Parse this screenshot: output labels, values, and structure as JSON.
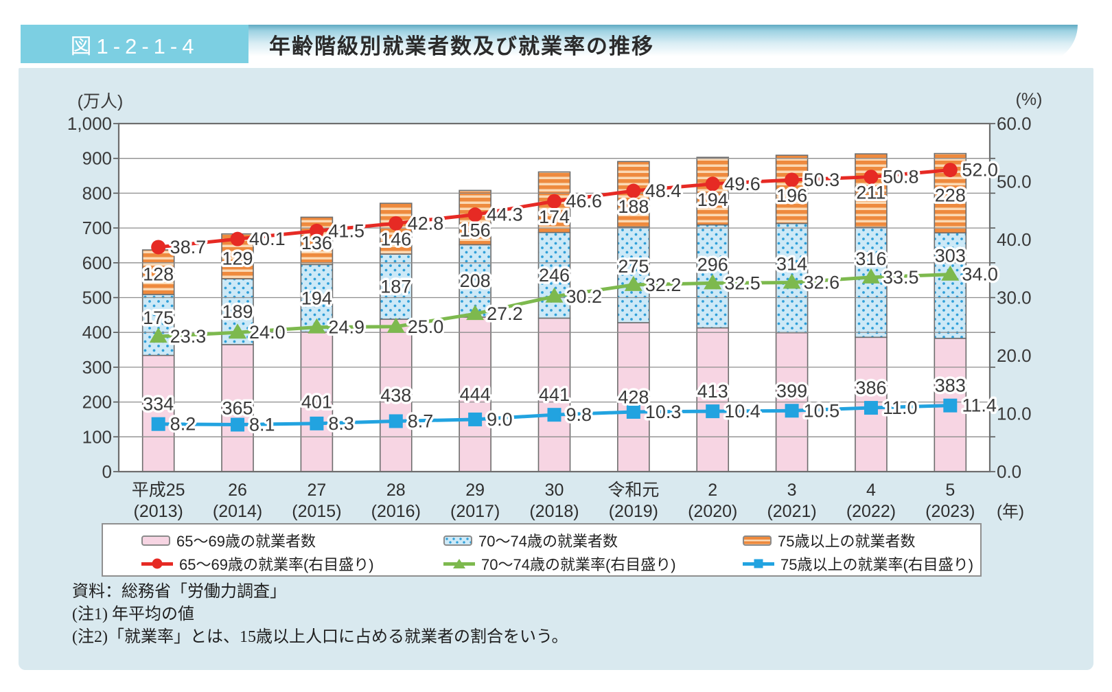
{
  "header": {
    "figure_label": "図1-2-1-4",
    "title": "年齢階級別就業者数及び就業率の推移"
  },
  "chart_data": {
    "type": "bar+line",
    "categories_era": [
      "平成25",
      "26",
      "27",
      "28",
      "29",
      "30",
      "令和元",
      "2",
      "3",
      "4",
      "5"
    ],
    "categories_year": [
      "(2013)",
      "(2014)",
      "(2015)",
      "(2016)",
      "(2017)",
      "(2018)",
      "(2019)",
      "(2020)",
      "(2021)",
      "(2022)",
      "(2023)"
    ],
    "x_axis_suffix": "(年)",
    "left_axis": {
      "unit": "(万人)",
      "min": 0,
      "max": 1000,
      "step": 100
    },
    "right_axis": {
      "unit": "(%)",
      "min": 0,
      "max": 60,
      "step": 10
    },
    "bar_series": [
      {
        "name": "65〜69歳の就業者数",
        "style": "pink",
        "color": "#f7d5e3",
        "values": [
          334,
          365,
          401,
          438,
          444,
          441,
          428,
          413,
          399,
          386,
          383
        ]
      },
      {
        "name": "70〜74歳の就業者数",
        "style": "blue-dots",
        "color": "#cde9f7",
        "dot_color": "#2f9fd8",
        "values": [
          175,
          189,
          194,
          187,
          208,
          246,
          275,
          296,
          314,
          316,
          303
        ]
      },
      {
        "name": "75歳以上の就業者数",
        "style": "orange-stripes",
        "color": "#ee8a3e",
        "stripe_color": "#fbd9b4",
        "values": [
          128,
          129,
          136,
          146,
          156,
          174,
          188,
          194,
          196,
          211,
          228
        ]
      }
    ],
    "line_series": [
      {
        "name": "65〜69歳の就業率(右目盛り)",
        "marker": "circle",
        "color": "#e62a24",
        "values": [
          38.7,
          40.1,
          41.5,
          42.8,
          44.3,
          46.6,
          48.4,
          49.6,
          50.3,
          50.8,
          52.0
        ]
      },
      {
        "name": "70〜74歳の就業率(右目盛り)",
        "marker": "triangle",
        "color": "#7db94e",
        "values": [
          23.3,
          24.0,
          24.9,
          25.0,
          27.2,
          30.2,
          32.2,
          32.5,
          32.6,
          33.5,
          34.0
        ]
      },
      {
        "name": "75歳以上の就業率(右目盛り)",
        "marker": "square",
        "color": "#22a3e0",
        "values": [
          8.2,
          8.1,
          8.3,
          8.7,
          9.0,
          9.8,
          10.3,
          10.4,
          10.5,
          11.0,
          11.4
        ]
      }
    ]
  },
  "notes": {
    "source": "資料：総務省「労働力調査」",
    "note1": "(注1) 年平均の値",
    "note2": "(注2)「就業率」とは、15歳以上人口に占める就業者の割合をいう。"
  }
}
